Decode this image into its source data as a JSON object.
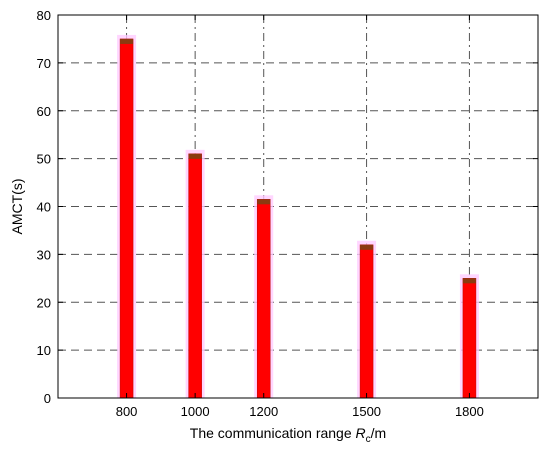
{
  "chart_data": {
    "type": "bar",
    "title": "",
    "xlabel_prefix": "The communication range ",
    "xlabel_var": "R",
    "xlabel_sub": "c",
    "xlabel_suffix": "/m",
    "ylabel": "AMCT(s)",
    "categories": [
      "800",
      "1000",
      "1200",
      "1500",
      "1800"
    ],
    "x": [
      800,
      1000,
      1200,
      1500,
      1800
    ],
    "values": [
      75,
      51,
      41.5,
      32,
      25
    ],
    "xlim": [
      600,
      2000
    ],
    "ylim": [
      0,
      80
    ],
    "yticks": [
      0,
      10,
      20,
      30,
      40,
      50,
      60,
      70,
      80
    ],
    "grid": true,
    "bar_color": "#ff0000",
    "bar_cap_color": "#8b3a10",
    "bar_glow_color": "#ffccff"
  }
}
